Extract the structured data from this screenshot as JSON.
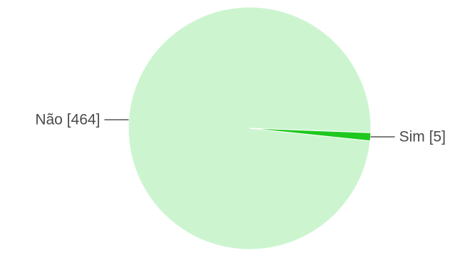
{
  "chart_data": {
    "type": "pie",
    "slices": [
      {
        "label": "Não",
        "value": 464,
        "display": "Não [464]",
        "color": "#ccf5cf"
      },
      {
        "label": "Sim",
        "value": 5,
        "display": "Sim [5]",
        "color": "#1ec81e"
      }
    ],
    "title": "",
    "legend": "none",
    "label_style": "callout",
    "start": "right, counter-clockwise"
  },
  "colors": {
    "slice_border": "#ffffff",
    "leader_line": "#555555",
    "label_text": "#4a4a4a",
    "background": "#ffffff"
  }
}
